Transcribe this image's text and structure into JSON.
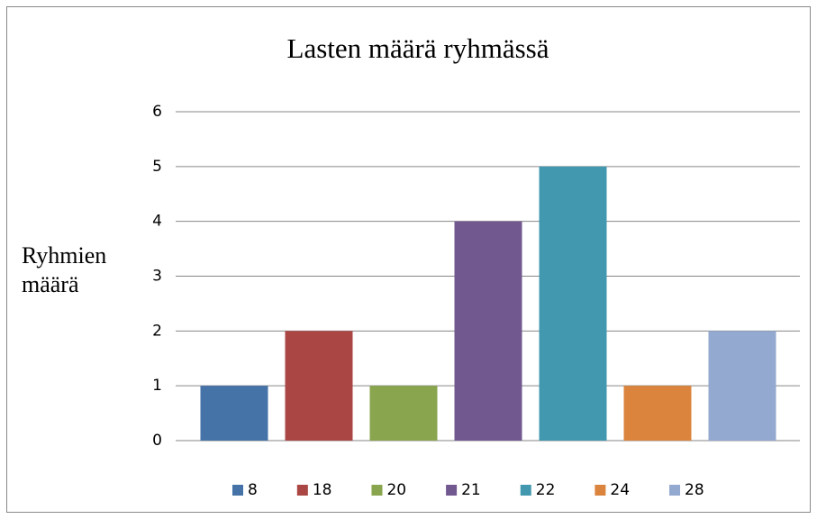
{
  "chart_data": {
    "type": "bar",
    "title": "Lasten määrä ryhmässä",
    "y_label": "Ryhmien määrä",
    "series": [
      {
        "name": "8",
        "color": "#4572a7",
        "values": [
          1
        ]
      },
      {
        "name": "18",
        "color": "#aa4643",
        "values": [
          2
        ]
      },
      {
        "name": "20",
        "color": "#89a54e",
        "values": [
          1
        ]
      },
      {
        "name": "21",
        "color": "#71588f",
        "values": [
          4
        ]
      },
      {
        "name": "22",
        "color": "#4198af",
        "values": [
          5
        ]
      },
      {
        "name": "24",
        "color": "#db843d",
        "values": [
          1
        ]
      },
      {
        "name": "28",
        "color": "#93a9cf",
        "values": [
          2
        ]
      }
    ],
    "ylim": [
      0,
      6
    ],
    "yticks": [
      0,
      1,
      2,
      3,
      4,
      5,
      6
    ],
    "grid": true,
    "legend": "bottom"
  }
}
